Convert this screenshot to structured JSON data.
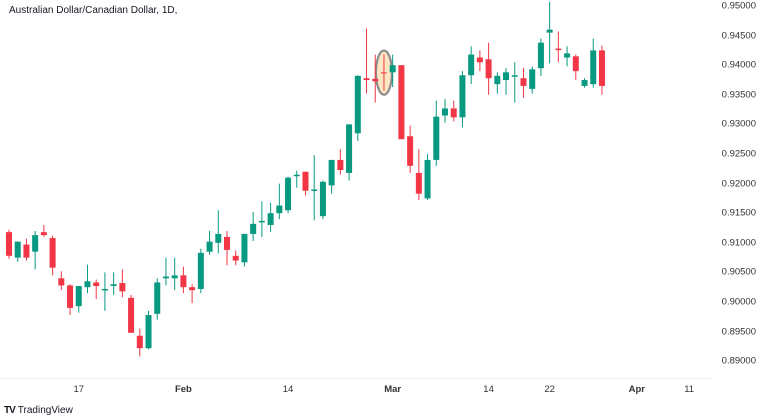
{
  "header": {
    "title": "Australian Dollar/Canadian Dollar, 1D,"
  },
  "branding": {
    "logo_glyph": "TV",
    "name": "TradingView"
  },
  "colors": {
    "up": "#089981",
    "down": "#F23645",
    "highlight_fill": "#FDE7C3",
    "highlight_stroke": "#8C8C8C"
  },
  "chart_data": {
    "type": "candlestick",
    "title": "Australian Dollar/Canadian Dollar, 1D,",
    "xlabel": "",
    "ylabel": "",
    "ylim": [
      0.8875,
      0.951
    ],
    "y_ticks": [
      "0.95000",
      "0.94500",
      "0.94000",
      "0.93500",
      "0.93000",
      "0.92500",
      "0.92000",
      "0.91500",
      "0.91000",
      "0.90500",
      "0.90000",
      "0.89500",
      "0.89000"
    ],
    "x_ticks": [
      {
        "label": "17",
        "index": 8,
        "bold": false
      },
      {
        "label": "Feb",
        "index": 20,
        "bold": true
      },
      {
        "label": "14",
        "index": 32,
        "bold": false
      },
      {
        "label": "Mar",
        "index": 44,
        "bold": true
      },
      {
        "label": "14",
        "index": 55,
        "bold": false
      },
      {
        "label": "22",
        "index": 62,
        "bold": false
      },
      {
        "label": "Apr",
        "index": 72,
        "bold": true
      },
      {
        "label": "11",
        "index": 78,
        "bold": false
      }
    ],
    "grid": false,
    "highlight": {
      "index": 43,
      "label": "doji highlighted"
    },
    "candles": [
      {
        "o": 0.9118,
        "h": 0.9122,
        "l": 0.9073,
        "c": 0.9078
      },
      {
        "o": 0.9075,
        "h": 0.91,
        "l": 0.9068,
        "c": 0.9102
      },
      {
        "o": 0.9097,
        "h": 0.9107,
        "l": 0.907,
        "c": 0.9075
      },
      {
        "o": 0.9085,
        "h": 0.912,
        "l": 0.9055,
        "c": 0.9113
      },
      {
        "o": 0.9118,
        "h": 0.913,
        "l": 0.911,
        "c": 0.9113
      },
      {
        "o": 0.9108,
        "h": 0.9112,
        "l": 0.9045,
        "c": 0.9058
      },
      {
        "o": 0.904,
        "h": 0.9052,
        "l": 0.902,
        "c": 0.9028
      },
      {
        "o": 0.9028,
        "h": 0.903,
        "l": 0.8978,
        "c": 0.899
      },
      {
        "o": 0.8993,
        "h": 0.9015,
        "l": 0.8982,
        "c": 0.9027
      },
      {
        "o": 0.9025,
        "h": 0.9063,
        "l": 0.9015,
        "c": 0.9035
      },
      {
        "o": 0.9033,
        "h": 0.9038,
        "l": 0.9005,
        "c": 0.9027
      },
      {
        "o": 0.902,
        "h": 0.905,
        "l": 0.8985,
        "c": 0.9022
      },
      {
        "o": 0.9027,
        "h": 0.905,
        "l": 0.9012,
        "c": 0.903
      },
      {
        "o": 0.9032,
        "h": 0.9055,
        "l": 0.9008,
        "c": 0.9018
      },
      {
        "o": 0.9007,
        "h": 0.9012,
        "l": 0.8953,
        "c": 0.8948
      },
      {
        "o": 0.8943,
        "h": 0.8955,
        "l": 0.8908,
        "c": 0.8922
      },
      {
        "o": 0.8922,
        "h": 0.8985,
        "l": 0.892,
        "c": 0.8978
      },
      {
        "o": 0.898,
        "h": 0.904,
        "l": 0.897,
        "c": 0.9033
      },
      {
        "o": 0.904,
        "h": 0.9075,
        "l": 0.9028,
        "c": 0.9043
      },
      {
        "o": 0.904,
        "h": 0.9075,
        "l": 0.902,
        "c": 0.9045
      },
      {
        "o": 0.9045,
        "h": 0.906,
        "l": 0.9015,
        "c": 0.9025
      },
      {
        "o": 0.9025,
        "h": 0.903,
        "l": 0.8998,
        "c": 0.902
      },
      {
        "o": 0.9022,
        "h": 0.909,
        "l": 0.9015,
        "c": 0.9083
      },
      {
        "o": 0.9085,
        "h": 0.912,
        "l": 0.908,
        "c": 0.9102
      },
      {
        "o": 0.91,
        "h": 0.9155,
        "l": 0.9082,
        "c": 0.9115
      },
      {
        "o": 0.911,
        "h": 0.912,
        "l": 0.9062,
        "c": 0.9088
      },
      {
        "o": 0.9078,
        "h": 0.9087,
        "l": 0.9062,
        "c": 0.907
      },
      {
        "o": 0.9067,
        "h": 0.9097,
        "l": 0.906,
        "c": 0.9115
      },
      {
        "o": 0.9115,
        "h": 0.9152,
        "l": 0.9103,
        "c": 0.9132
      },
      {
        "o": 0.9135,
        "h": 0.917,
        "l": 0.911,
        "c": 0.9137
      },
      {
        "o": 0.913,
        "h": 0.9168,
        "l": 0.9118,
        "c": 0.915
      },
      {
        "o": 0.915,
        "h": 0.92,
        "l": 0.914,
        "c": 0.9163
      },
      {
        "o": 0.9155,
        "h": 0.9212,
        "l": 0.915,
        "c": 0.921
      },
      {
        "o": 0.9213,
        "h": 0.9222,
        "l": 0.9193,
        "c": 0.9215
      },
      {
        "o": 0.922,
        "h": 0.9215,
        "l": 0.918,
        "c": 0.9188
      },
      {
        "o": 0.919,
        "h": 0.9248,
        "l": 0.9138,
        "c": 0.919
      },
      {
        "o": 0.9145,
        "h": 0.9205,
        "l": 0.914,
        "c": 0.9203
      },
      {
        "o": 0.9197,
        "h": 0.9232,
        "l": 0.9183,
        "c": 0.924
      },
      {
        "o": 0.924,
        "h": 0.9258,
        "l": 0.9215,
        "c": 0.9223
      },
      {
        "o": 0.9218,
        "h": 0.928,
        "l": 0.9205,
        "c": 0.93
      },
      {
        "o": 0.9285,
        "h": 0.9383,
        "l": 0.9272,
        "c": 0.9382
      },
      {
        "o": 0.9378,
        "h": 0.9462,
        "l": 0.9352,
        "c": 0.9375
      },
      {
        "o": 0.9377,
        "h": 0.9418,
        "l": 0.9337,
        "c": 0.9373
      },
      {
        "o": 0.937,
        "h": 0.9418,
        "l": 0.9357,
        "c": 0.9387
      },
      {
        "o": 0.9388,
        "h": 0.9418,
        "l": 0.9363,
        "c": 0.94
      },
      {
        "o": 0.94,
        "h": 0.9398,
        "l": 0.933,
        "c": 0.9275
      },
      {
        "o": 0.928,
        "h": 0.9298,
        "l": 0.9218,
        "c": 0.923
      },
      {
        "o": 0.9218,
        "h": 0.9258,
        "l": 0.9172,
        "c": 0.9183
      },
      {
        "o": 0.9175,
        "h": 0.925,
        "l": 0.9172,
        "c": 0.924
      },
      {
        "o": 0.924,
        "h": 0.934,
        "l": 0.923,
        "c": 0.9313
      },
      {
        "o": 0.9315,
        "h": 0.9343,
        "l": 0.9303,
        "c": 0.9327
      },
      {
        "o": 0.9327,
        "h": 0.934,
        "l": 0.9305,
        "c": 0.9312
      },
      {
        "o": 0.9312,
        "h": 0.939,
        "l": 0.9295,
        "c": 0.9383
      },
      {
        "o": 0.9383,
        "h": 0.9432,
        "l": 0.9368,
        "c": 0.9418
      },
      {
        "o": 0.9413,
        "h": 0.9425,
        "l": 0.939,
        "c": 0.9405
      },
      {
        "o": 0.941,
        "h": 0.9438,
        "l": 0.935,
        "c": 0.9378
      },
      {
        "o": 0.9368,
        "h": 0.9388,
        "l": 0.9352,
        "c": 0.9382
      },
      {
        "o": 0.9375,
        "h": 0.9395,
        "l": 0.935,
        "c": 0.9388
      },
      {
        "o": 0.9383,
        "h": 0.9405,
        "l": 0.9337,
        "c": 0.9383
      },
      {
        "o": 0.9378,
        "h": 0.9395,
        "l": 0.9345,
        "c": 0.9365
      },
      {
        "o": 0.936,
        "h": 0.9398,
        "l": 0.9352,
        "c": 0.9393
      },
      {
        "o": 0.9395,
        "h": 0.9445,
        "l": 0.9382,
        "c": 0.9438
      },
      {
        "o": 0.9455,
        "h": 0.9507,
        "l": 0.9403,
        "c": 0.946
      },
      {
        "o": 0.9428,
        "h": 0.9457,
        "l": 0.9405,
        "c": 0.9427
      },
      {
        "o": 0.9413,
        "h": 0.9432,
        "l": 0.9398,
        "c": 0.942
      },
      {
        "o": 0.9415,
        "h": 0.9418,
        "l": 0.9375,
        "c": 0.939
      },
      {
        "o": 0.9365,
        "h": 0.9378,
        "l": 0.9362,
        "c": 0.9375
      },
      {
        "o": 0.9368,
        "h": 0.9445,
        "l": 0.9362,
        "c": 0.9425
      },
      {
        "o": 0.9425,
        "h": 0.9433,
        "l": 0.935,
        "c": 0.9365
      }
    ]
  }
}
